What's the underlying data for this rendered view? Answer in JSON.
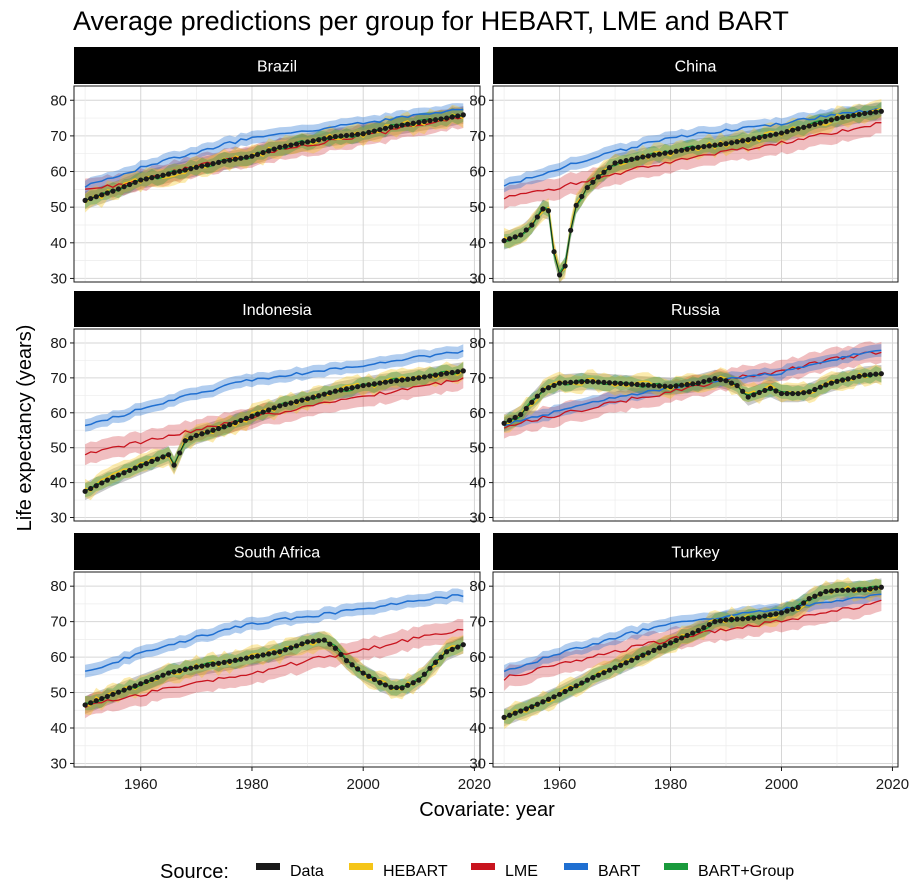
{
  "chart_data": {
    "type": "line",
    "title": "Average predictions per group for HEBART, LME and BART",
    "xlabel": "Covariate: year",
    "ylabel": "Life expectancy (years)",
    "xlim": [
      1948,
      2021
    ],
    "ylim": [
      29,
      84
    ],
    "x_ticks": [
      1960,
      1980,
      2000,
      2020
    ],
    "y_ticks": [
      30,
      40,
      50,
      60,
      70,
      80
    ],
    "grid": true,
    "legend": {
      "title": "Source:",
      "position": "bottom",
      "entries": [
        {
          "name": "Data",
          "color": "#1a1a1a"
        },
        {
          "name": "HEBART",
          "color": "#f5c518"
        },
        {
          "name": "LME",
          "color": "#c8141e"
        },
        {
          "name": "BART",
          "color": "#1f6fd1"
        },
        {
          "name": "BART+Group",
          "color": "#1a9a3c"
        }
      ]
    },
    "panels": [
      {
        "name": "Brazil",
        "data_points": [
          [
            1950,
            51.9
          ],
          [
            1955,
            54.5
          ],
          [
            1960,
            57.6
          ],
          [
            1965,
            59.3
          ],
          [
            1970,
            61.2
          ],
          [
            1975,
            62.9
          ],
          [
            1980,
            64.3
          ],
          [
            1985,
            66.8
          ],
          [
            1990,
            68.3
          ],
          [
            1995,
            69.8
          ],
          [
            2000,
            70.6
          ],
          [
            2005,
            72.5
          ],
          [
            2010,
            73.8
          ],
          [
            2015,
            75.0
          ],
          [
            2018,
            75.9
          ]
        ],
        "lme": [
          [
            1950,
            54.5
          ],
          [
            1960,
            57.5
          ],
          [
            1970,
            61.5
          ],
          [
            1980,
            64.5
          ],
          [
            1990,
            67.5
          ],
          [
            2000,
            70.0
          ],
          [
            2010,
            73.0
          ],
          [
            2018,
            75.5
          ]
        ],
        "bart": [
          [
            1950,
            55.8
          ],
          [
            1960,
            61.0
          ],
          [
            1970,
            65.5
          ],
          [
            1980,
            69.5
          ],
          [
            1990,
            71.5
          ],
          [
            2000,
            73.5
          ],
          [
            2010,
            76.0
          ],
          [
            2018,
            77.5
          ]
        ]
      },
      {
        "name": "China",
        "data_points": [
          [
            1950,
            40.6
          ],
          [
            1953,
            42.2
          ],
          [
            1955,
            45.0
          ],
          [
            1957,
            49.5
          ],
          [
            1958,
            49.0
          ],
          [
            1959,
            37.5
          ],
          [
            1960,
            31.0
          ],
          [
            1961,
            33.5
          ],
          [
            1962,
            43.5
          ],
          [
            1963,
            50.5
          ],
          [
            1964,
            53.0
          ],
          [
            1965,
            55.5
          ],
          [
            1967,
            58.5
          ],
          [
            1970,
            62.4
          ],
          [
            1975,
            64.1
          ],
          [
            1980,
            65.4
          ],
          [
            1985,
            66.8
          ],
          [
            1990,
            67.8
          ],
          [
            1995,
            69.2
          ],
          [
            2000,
            70.8
          ],
          [
            2005,
            72.8
          ],
          [
            2010,
            74.9
          ],
          [
            2015,
            76.3
          ],
          [
            2018,
            76.9
          ]
        ],
        "lme": [
          [
            1950,
            52.5
          ],
          [
            1960,
            55.5
          ],
          [
            1970,
            59.5
          ],
          [
            1980,
            62.5
          ],
          [
            1990,
            65.5
          ],
          [
            2000,
            68.0
          ],
          [
            2010,
            71.0
          ],
          [
            2018,
            73.5
          ]
        ],
        "bart": [
          [
            1950,
            56.0
          ],
          [
            1960,
            61.0
          ],
          [
            1970,
            65.5
          ],
          [
            1980,
            69.5
          ],
          [
            1990,
            71.5
          ],
          [
            2000,
            73.5
          ],
          [
            2010,
            76.0
          ],
          [
            2018,
            77.5
          ]
        ]
      },
      {
        "name": "Indonesia",
        "data_points": [
          [
            1950,
            37.5
          ],
          [
            1955,
            41.5
          ],
          [
            1960,
            44.8
          ],
          [
            1965,
            48.0
          ],
          [
            1966,
            45.0
          ],
          [
            1968,
            52.0
          ],
          [
            1970,
            53.5
          ],
          [
            1975,
            56.0
          ],
          [
            1980,
            59.0
          ],
          [
            1985,
            62.0
          ],
          [
            1990,
            64.0
          ],
          [
            1995,
            66.2
          ],
          [
            2000,
            67.8
          ],
          [
            2005,
            69.0
          ],
          [
            2010,
            70.0
          ],
          [
            2015,
            71.3
          ],
          [
            2018,
            72.0
          ]
        ],
        "lme": [
          [
            1950,
            48.5
          ],
          [
            1960,
            51.5
          ],
          [
            1970,
            55.0
          ],
          [
            1980,
            58.5
          ],
          [
            1990,
            62.0
          ],
          [
            2000,
            64.5
          ],
          [
            2010,
            67.5
          ],
          [
            2018,
            69.5
          ]
        ],
        "bart": [
          [
            1950,
            56.0
          ],
          [
            1960,
            61.0
          ],
          [
            1970,
            65.5
          ],
          [
            1980,
            69.5
          ],
          [
            1990,
            71.5
          ],
          [
            2000,
            73.5
          ],
          [
            2010,
            76.0
          ],
          [
            2018,
            77.5
          ]
        ]
      },
      {
        "name": "Russia",
        "data_points": [
          [
            1950,
            57.0
          ],
          [
            1953,
            59.5
          ],
          [
            1955,
            63.0
          ],
          [
            1957,
            66.5
          ],
          [
            1960,
            68.5
          ],
          [
            1965,
            69.0
          ],
          [
            1970,
            68.5
          ],
          [
            1975,
            68.0
          ],
          [
            1980,
            67.5
          ],
          [
            1985,
            68.5
          ],
          [
            1988,
            69.8
          ],
          [
            1990,
            69.2
          ],
          [
            1992,
            67.8
          ],
          [
            1994,
            64.5
          ],
          [
            1996,
            65.8
          ],
          [
            1998,
            67.0
          ],
          [
            2000,
            65.5
          ],
          [
            2003,
            65.5
          ],
          [
            2005,
            66.0
          ],
          [
            2008,
            68.0
          ],
          [
            2010,
            69.0
          ],
          [
            2015,
            70.8
          ],
          [
            2018,
            71.2
          ]
        ],
        "lme": [
          [
            1950,
            56.0
          ],
          [
            1960,
            59.5
          ],
          [
            1970,
            63.0
          ],
          [
            1980,
            66.0
          ],
          [
            1990,
            69.5
          ],
          [
            2000,
            72.0
          ],
          [
            2010,
            75.5
          ],
          [
            2018,
            77.5
          ]
        ],
        "bart": [
          [
            1950,
            56.5
          ],
          [
            1960,
            60.5
          ],
          [
            1970,
            64.5
          ],
          [
            1980,
            67.0
          ],
          [
            1990,
            69.5
          ],
          [
            2000,
            71.5
          ],
          [
            2010,
            75.5
          ],
          [
            2018,
            78.0
          ]
        ]
      },
      {
        "name": "South Africa",
        "data_points": [
          [
            1950,
            46.5
          ],
          [
            1955,
            49.5
          ],
          [
            1960,
            52.5
          ],
          [
            1965,
            55.5
          ],
          [
            1970,
            57.2
          ],
          [
            1975,
            58.5
          ],
          [
            1980,
            60.0
          ],
          [
            1985,
            61.5
          ],
          [
            1990,
            64.3
          ],
          [
            1993,
            64.8
          ],
          [
            1995,
            62.5
          ],
          [
            1997,
            59.0
          ],
          [
            2000,
            55.5
          ],
          [
            2003,
            52.8
          ],
          [
            2005,
            51.5
          ],
          [
            2007,
            51.3
          ],
          [
            2010,
            53.5
          ],
          [
            2013,
            58.5
          ],
          [
            2015,
            61.5
          ],
          [
            2018,
            63.5
          ]
        ],
        "lme": [
          [
            1950,
            46.0
          ],
          [
            1960,
            49.5
          ],
          [
            1970,
            52.5
          ],
          [
            1980,
            55.5
          ],
          [
            1990,
            59.0
          ],
          [
            2000,
            62.0
          ],
          [
            2010,
            65.5
          ],
          [
            2018,
            68.0
          ]
        ],
        "bart": [
          [
            1950,
            56.0
          ],
          [
            1960,
            61.0
          ],
          [
            1970,
            65.5
          ],
          [
            1980,
            69.5
          ],
          [
            1990,
            71.5
          ],
          [
            2000,
            73.5
          ],
          [
            2010,
            76.0
          ],
          [
            2018,
            77.5
          ]
        ]
      },
      {
        "name": "Turkey",
        "data_points": [
          [
            1950,
            43.0
          ],
          [
            1955,
            46.0
          ],
          [
            1960,
            49.5
          ],
          [
            1965,
            53.5
          ],
          [
            1970,
            57.0
          ],
          [
            1975,
            60.5
          ],
          [
            1980,
            64.0
          ],
          [
            1985,
            67.5
          ],
          [
            1988,
            70.0
          ],
          [
            1990,
            70.5
          ],
          [
            1995,
            71.0
          ],
          [
            2000,
            72.5
          ],
          [
            2003,
            74.0
          ],
          [
            2005,
            76.5
          ],
          [
            2008,
            78.5
          ],
          [
            2010,
            78.8
          ],
          [
            2015,
            79.0
          ],
          [
            2018,
            79.7
          ]
        ],
        "lme": [
          [
            1950,
            54.0
          ],
          [
            1960,
            58.0
          ],
          [
            1970,
            61.5
          ],
          [
            1980,
            65.0
          ],
          [
            1990,
            68.0
          ],
          [
            2000,
            70.0
          ],
          [
            2010,
            73.0
          ],
          [
            2018,
            75.5
          ]
        ],
        "bart": [
          [
            1950,
            56.0
          ],
          [
            1960,
            61.0
          ],
          [
            1970,
            65.5
          ],
          [
            1980,
            69.5
          ],
          [
            1990,
            71.5
          ],
          [
            2000,
            73.5
          ],
          [
            2010,
            76.0
          ],
          [
            2018,
            77.5
          ]
        ]
      }
    ]
  }
}
